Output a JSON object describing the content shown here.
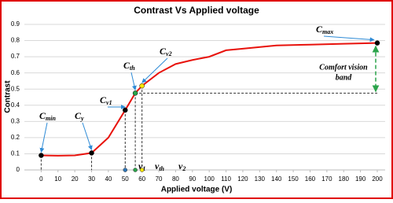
{
  "chart_data": {
    "type": "line",
    "title": "Contrast Vs Applied voltage",
    "x_label": "Applied voltage (V)",
    "y_label": "Contrast",
    "xlim": [
      -10,
      200
    ],
    "ylim": [
      0,
      0.9
    ],
    "xticks": [
      0,
      10,
      20,
      30,
      40,
      50,
      60,
      70,
      80,
      90,
      100,
      110,
      120,
      130,
      140,
      150,
      160,
      170,
      180,
      190,
      200
    ],
    "yticks": [
      0,
      0.1,
      0.2,
      0.3,
      0.4,
      0.5,
      0.6,
      0.7,
      0.8,
      0.9
    ],
    "grid": true,
    "series": [
      {
        "color": "#e8120c",
        "x": [
          0,
          10,
          20,
          30,
          40,
          50,
          56,
          60,
          70,
          80,
          90,
          100,
          110,
          120,
          140,
          160,
          180,
          200
        ],
        "values": [
          0.09,
          0.088,
          0.09,
          0.105,
          0.2,
          0.37,
          0.475,
          0.52,
          0.6,
          0.655,
          0.68,
          0.7,
          0.74,
          0.75,
          0.77,
          0.775,
          0.78,
          0.785
        ]
      }
    ],
    "points": [
      {
        "label": {
          "base": "C",
          "sub": "min"
        },
        "x": 0,
        "y": 0.09,
        "color": "#000000"
      },
      {
        "label": {
          "base": "C",
          "sub": "y"
        },
        "x": 30,
        "y": 0.105,
        "color": "#000000"
      },
      {
        "label": {
          "base": "C",
          "sub": "v1"
        },
        "x": 50,
        "y": 0.37,
        "color": "#000000"
      },
      {
        "label": {
          "base": "C",
          "sub": "th"
        },
        "x": 56,
        "y": 0.475,
        "color": "#2aa34a"
      },
      {
        "label": {
          "base": "C",
          "sub": "v2"
        },
        "x": 60,
        "y": 0.52,
        "color": "#ffe600"
      },
      {
        "label": {
          "base": "C",
          "sub": "max"
        },
        "x": 200,
        "y": 0.785,
        "color": "#000000"
      }
    ],
    "axis_points": [
      {
        "label": {
          "base": "v",
          "sub": "1"
        },
        "x": 50,
        "color": "#2e75b6"
      },
      {
        "label": {
          "base": "v",
          "sub": "th"
        },
        "x": 56,
        "color": "#2aa34a"
      },
      {
        "label": {
          "base": "v",
          "sub": "2"
        },
        "x": 60,
        "color": "#ffe600"
      }
    ],
    "band": {
      "label": [
        "Comfort vision",
        "band"
      ],
      "color": "#2aa34a"
    }
  }
}
